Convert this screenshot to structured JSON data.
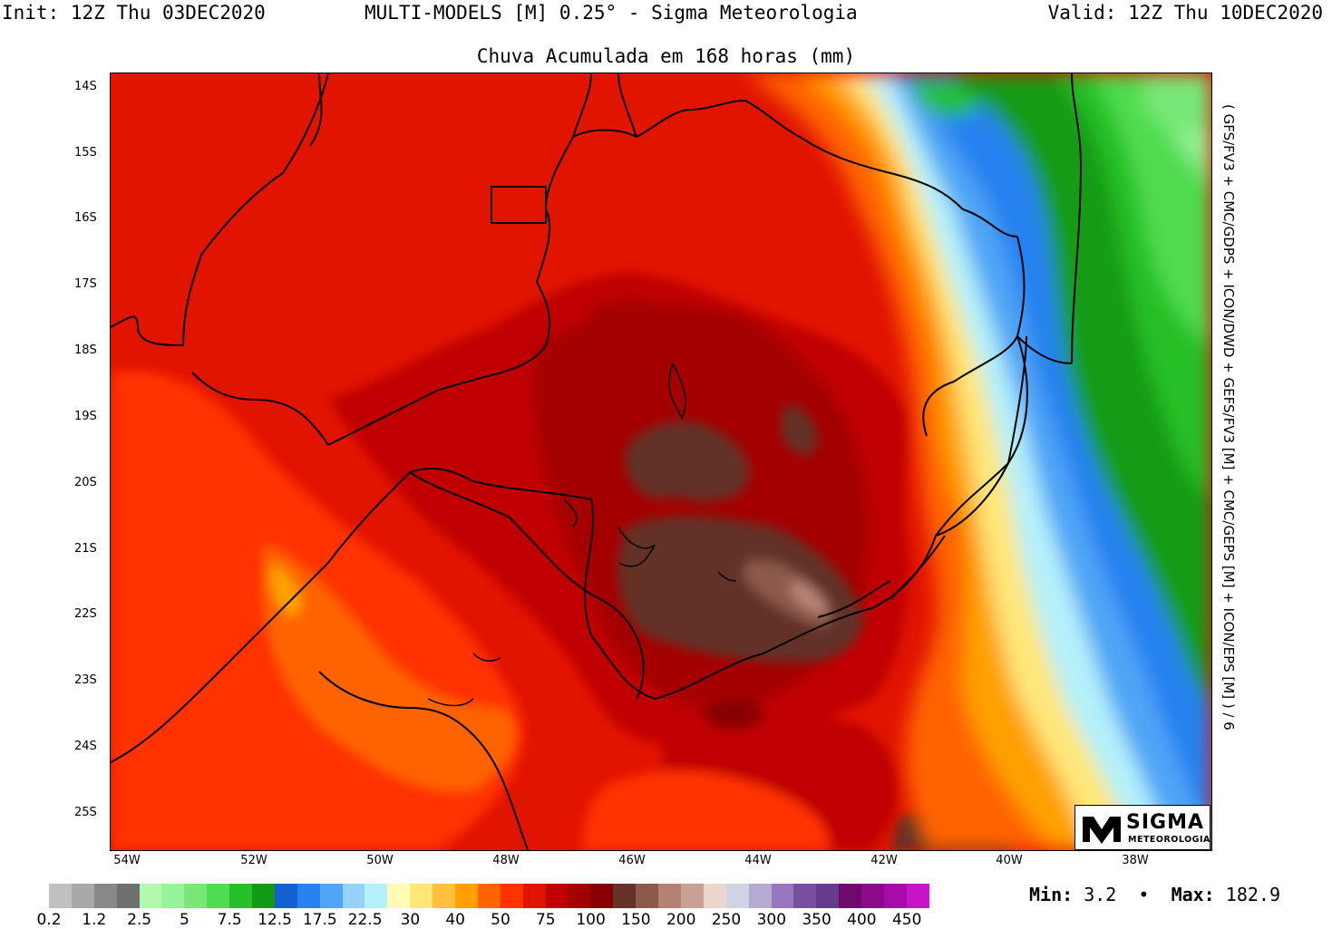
{
  "header": {
    "init": "Init: 12Z Thu 03DEC2020",
    "model": "MULTI-MODELS [M] 0.25° - Sigma Meteorologia",
    "valid": "Valid: 12Z Thu 10DEC2020"
  },
  "subtitle": "Chuva Acumulada em 168 horas (mm)",
  "side_text": "( GFS/FV3 + CMC/GDPS + ICON/DWD + GEFS/FV3 [M] + CMC/GEPS [M] + ICON/EPS [M] ) / 6",
  "lat_labels": [
    "14S",
    "15S",
    "16S",
    "17S",
    "18S",
    "19S",
    "20S",
    "21S",
    "22S",
    "23S",
    "24S",
    "25S"
  ],
  "lon_labels": [
    "54W",
    "52W",
    "50W",
    "48W",
    "46W",
    "44W",
    "42W",
    "40W",
    "38W"
  ],
  "colorbar": {
    "colors": [
      "#c0c0c0",
      "#a8a8a8",
      "#888888",
      "#6f6f6f",
      "#b4f8b4",
      "#96f396",
      "#78e778",
      "#50dc50",
      "#28c028",
      "#149b14",
      "#1460d2",
      "#2882f0",
      "#50a5f5",
      "#96d2fa",
      "#b4f0fa",
      "#fffab4",
      "#ffe678",
      "#ffc03c",
      "#ffa000",
      "#ff6400",
      "#ff3200",
      "#e11400",
      "#c00000",
      "#a50000",
      "#870000",
      "#643228",
      "#8c5a4b",
      "#b48273",
      "#c8a096",
      "#ebd7cd",
      "#d2d2e6",
      "#b4aad2",
      "#9678be",
      "#7850a0",
      "#643c8c",
      "#6e0a6e",
      "#8c0a8c",
      "#aa0aaa",
      "#c814c8"
    ],
    "labels": [
      "0.2",
      "1.2",
      "2.5",
      "5",
      "7.5",
      "12.5",
      "17.5",
      "22.5",
      "30",
      "40",
      "50",
      "75",
      "100",
      "150",
      "200",
      "250",
      "300",
      "350",
      "400",
      "450"
    ]
  },
  "stats": {
    "min_label": "Min:",
    "min_value": "3.2",
    "max_label": "Max:",
    "max_value": "182.9"
  },
  "logo": {
    "name": "SIGMA",
    "sub": "METEOROLOGIA"
  }
}
